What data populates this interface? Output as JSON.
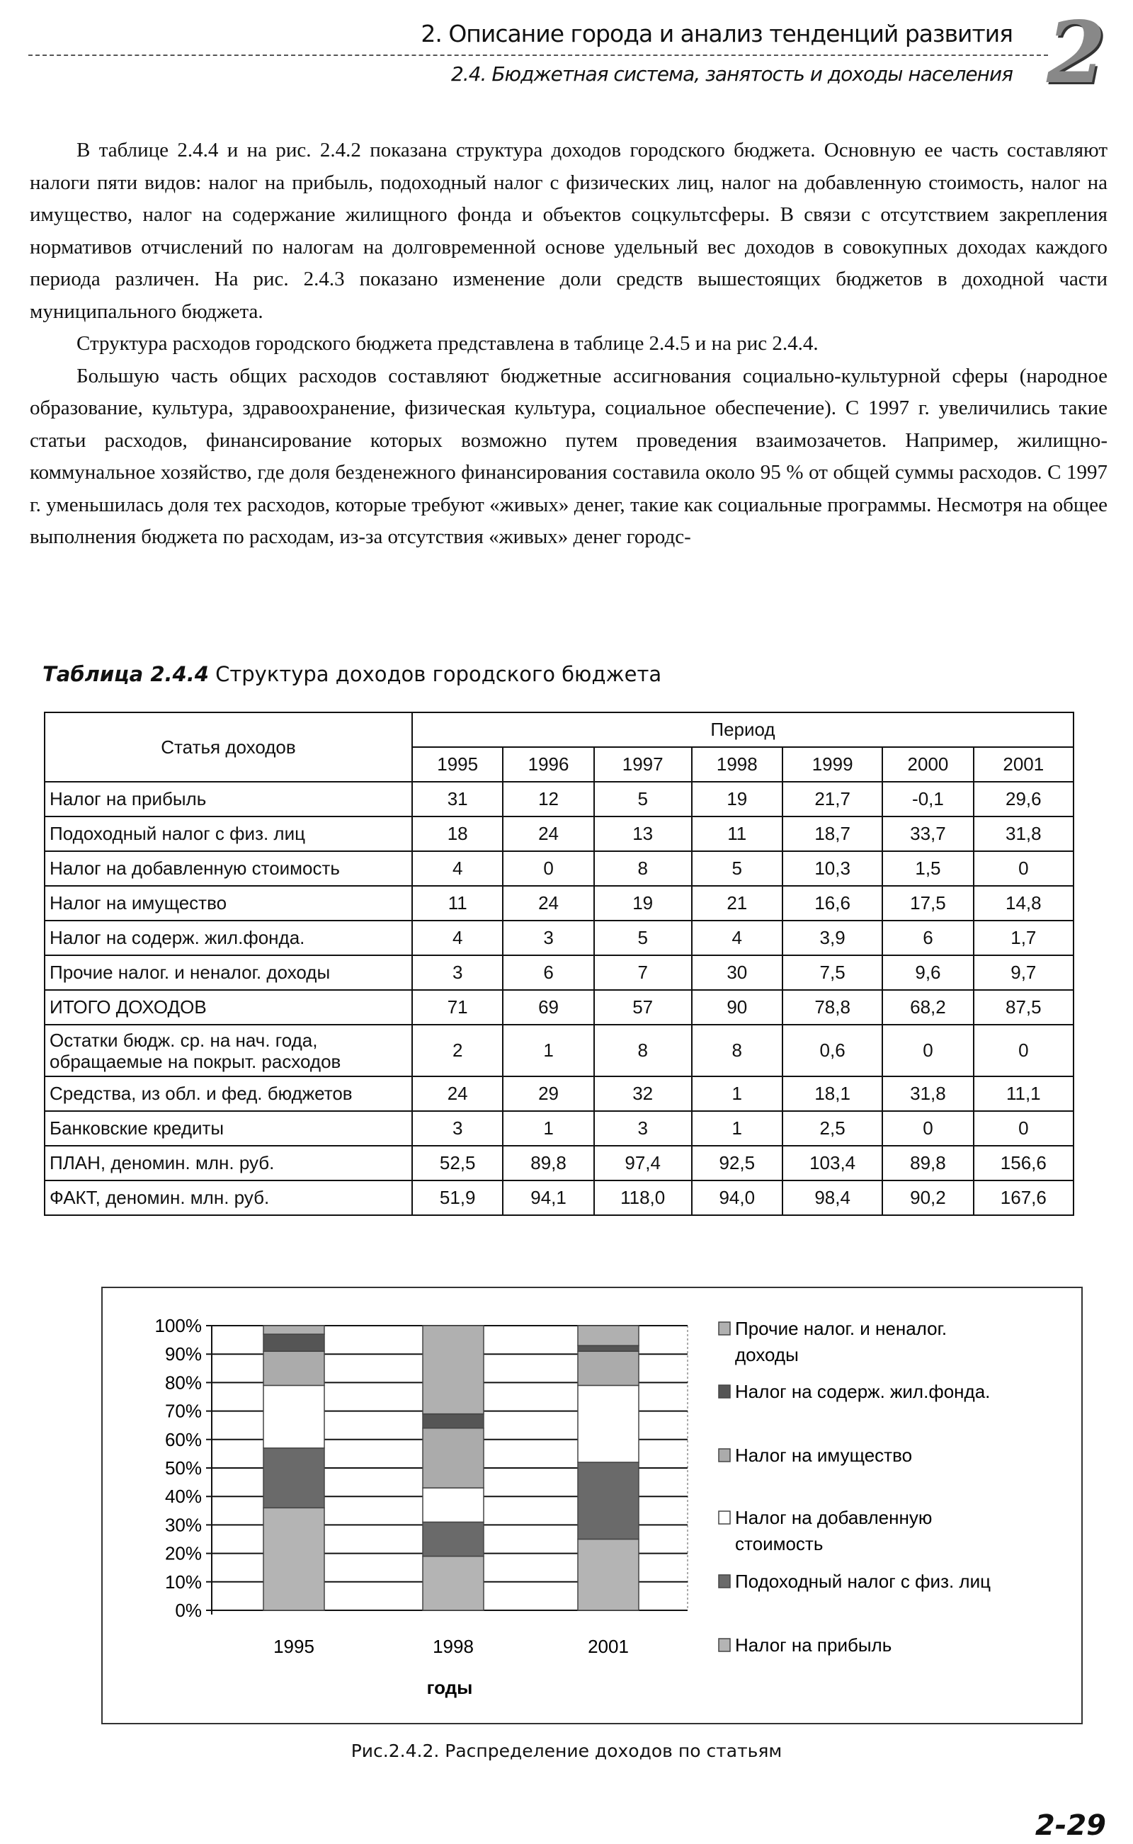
{
  "header": {
    "chapter": "2. Описание города и анализ тенденций развития",
    "section": "2.4. Бюджетная система, занятость и доходы населения",
    "chapter_badge": "2"
  },
  "paragraphs": [
    "В таблице 2.4.4 и на рис. 2.4.2 показана структура доходов городского бюджета. Основную ее часть составляют налоги пяти видов: налог на прибыль, подоходный налог с физических лиц, налог на добавленную стоимость, налог на имущество, налог на содержание жилищного фонда и объектов соцкультсферы. В связи с отсутствием закрепления нормативов отчислений по налогам на долговременной основе удельный вес доходов в совокупных доходах каждого периода различен. На рис. 2.4.3 показано изменение доли средств вышестоящих бюджетов в доходной части муниципального бюджета.",
    "Структура расходов городского бюджета представлена в таблице 2.4.5 и на рис 2.4.4.",
    "Большую часть общих расходов составляют бюджетные ассигнования социально-культурной сферы (народное образование, культура, здравоохранение, физическая культура, социальное обеспечение). С 1997 г. увеличились такие статьи расходов, финансирование которых возможно путем проведения взаимозачетов. Например, жилищно-коммунальное хозяйство, где доля безденежного финансирования составила около 95 % от общей суммы расходов. С 1997 г. уменьшилась доля тех расходов, которые требуют «живых» денег, такие как социальные программы. Несмотря на общее выполнения бюджета по расходам, из-за отсутствия «живых» денег городс-"
  ],
  "table": {
    "caption_label": "Таблица 2.4.4",
    "caption_text": " Структура доходов городского бюджета",
    "row_header": "Статья доходов",
    "period_header": "Период",
    "years": [
      "1995",
      "1996",
      "1997",
      "1998",
      "1999",
      "2000",
      "2001"
    ],
    "rows": [
      {
        "label": "Налог на прибыль",
        "values": [
          "31",
          "12",
          "5",
          "19",
          "21,7",
          "-0,1",
          "29,6"
        ]
      },
      {
        "label": "Подоходный налог с физ. лиц",
        "values": [
          "18",
          "24",
          "13",
          "11",
          "18,7",
          "33,7",
          "31,8"
        ]
      },
      {
        "label": "Налог на добавленную стоимость",
        "values": [
          "4",
          "0",
          "8",
          "5",
          "10,3",
          "1,5",
          "0"
        ]
      },
      {
        "label": "Налог на имущество",
        "values": [
          "11",
          "24",
          "19",
          "21",
          "16,6",
          "17,5",
          "14,8"
        ]
      },
      {
        "label": "Налог на содерж. жил.фонда.",
        "values": [
          "4",
          "3",
          "5",
          "4",
          "3,9",
          "6",
          "1,7"
        ]
      },
      {
        "label": "Прочие налог. и неналог. доходы",
        "values": [
          "3",
          "6",
          "7",
          "30",
          "7,5",
          "9,6",
          "9,7"
        ]
      },
      {
        "label": "ИТОГО ДОХОДОВ",
        "values": [
          "71",
          "69",
          "57",
          "90",
          "78,8",
          "68,2",
          "87,5"
        ]
      },
      {
        "label": "Остатки бюдж. ср. на нач. года, обращаемые на покрыт. расходов",
        "values": [
          "2",
          "1",
          "8",
          "8",
          "0,6",
          "0",
          "0"
        ]
      },
      {
        "label": "Средства, из обл. и фед. бюджетов",
        "values": [
          "24",
          "29",
          "32",
          "1",
          "18,1",
          "31,8",
          "11,1"
        ]
      },
      {
        "label": "Банковские кредиты",
        "values": [
          "3",
          "1",
          "3",
          "1",
          "2,5",
          "0",
          "0"
        ]
      },
      {
        "label": "ПЛАН, деномин. млн. руб.",
        "values": [
          "52,5",
          "89,8",
          "97,4",
          "92,5",
          "103,4",
          "89,8",
          "156,6"
        ]
      },
      {
        "label": "ФАКТ, деномин. млн. руб.",
        "values": [
          "51,9",
          "94,1",
          "118,0",
          "94,0",
          "98,4",
          "90,2",
          "167,6"
        ]
      }
    ]
  },
  "chart_data": {
    "type": "bar",
    "stacked": "percent",
    "categories": [
      "1995",
      "1998",
      "2001"
    ],
    "xlabel": "годы",
    "ylabel": "",
    "ylim": [
      0,
      100
    ],
    "yticks": [
      "0%",
      "10%",
      "20%",
      "30%",
      "40%",
      "50%",
      "60%",
      "70%",
      "80%",
      "90%",
      "100%"
    ],
    "grid": true,
    "legend_position": "right",
    "series": [
      {
        "name": "Налог на прибыль",
        "values": [
          36,
          19,
          25
        ],
        "color": "#b4b4b4"
      },
      {
        "name": "Подоходный налог с физ. лиц",
        "values": [
          21,
          12,
          27
        ],
        "color": "#6a6a6a"
      },
      {
        "name": "Налог на добавленную стоимость",
        "values": [
          22,
          12,
          27
        ],
        "color": "#ffffff"
      },
      {
        "name": "Налог на имущество",
        "values": [
          12,
          21,
          12
        ],
        "color": "#ababab"
      },
      {
        "name": "Налог на содерж. жил.фонда.",
        "values": [
          6,
          5,
          2
        ],
        "color": "#555555"
      },
      {
        "name": "Прочие налог. и неналог. доходы",
        "values": [
          3,
          31,
          7
        ],
        "color": "#b0b0b0"
      }
    ],
    "legend_lines": [
      [
        "Прочие налог. и неналог.",
        "доходы"
      ],
      [
        "Налог на содерж. жил.фонда."
      ],
      [
        "Налог на имущество"
      ],
      [
        "Налог на добавленную",
        "стоимость"
      ],
      [
        "Подоходный налог с физ. лиц"
      ],
      [
        "Налог на прибыль"
      ]
    ]
  },
  "figure_caption": "Рис.2.4.2. Распределение доходов по статьям",
  "page_number": "2-29"
}
